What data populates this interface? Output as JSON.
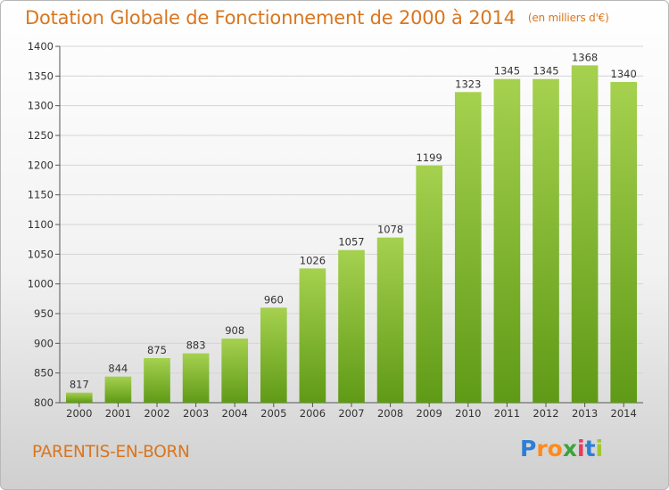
{
  "header": {
    "title": "Dotation Globale de Fonctionnement de 2000 à 2014",
    "subtitle": "(en milliers d'€)"
  },
  "footer": {
    "commune": "PARENTIS-EN-BORN",
    "brand_letters": [
      "P",
      "r",
      "o",
      "x",
      "i",
      "t",
      "i"
    ],
    "brand_colors": [
      "#2d7fd6",
      "#ff8a1c",
      "#ff8a1c",
      "#3aa33a",
      "#e83a5f",
      "#2d7fd6",
      "#a0c82e"
    ]
  },
  "colors": {
    "title": "#d9761f",
    "bar_top": "#a5d14f",
    "bar_bottom": "#5f9a16",
    "grid": "#d4d4d4"
  },
  "chart_data": {
    "type": "bar",
    "title": "Dotation Globale de Fonctionnement de 2000 à 2014",
    "subtitle": "(en milliers d'€)",
    "xlabel": "",
    "ylabel": "",
    "categories": [
      "2000",
      "2001",
      "2002",
      "2003",
      "2004",
      "2005",
      "2006",
      "2007",
      "2008",
      "2009",
      "2010",
      "2011",
      "2012",
      "2013",
      "2014"
    ],
    "values": [
      817,
      844,
      875,
      883,
      908,
      960,
      1026,
      1057,
      1078,
      1199,
      1323,
      1345,
      1345,
      1368,
      1340
    ],
    "value_labels": [
      "817",
      "844",
      "875",
      "883",
      "908",
      "960",
      "1026",
      "1057",
      "1078",
      "1199",
      "1323",
      "1345",
      "1345",
      "1368",
      "1340"
    ],
    "ylim": [
      800,
      1400
    ],
    "yticks": [
      800,
      850,
      900,
      950,
      1000,
      1050,
      1100,
      1150,
      1200,
      1250,
      1300,
      1350,
      1400
    ],
    "grid": true,
    "legend": "none"
  }
}
